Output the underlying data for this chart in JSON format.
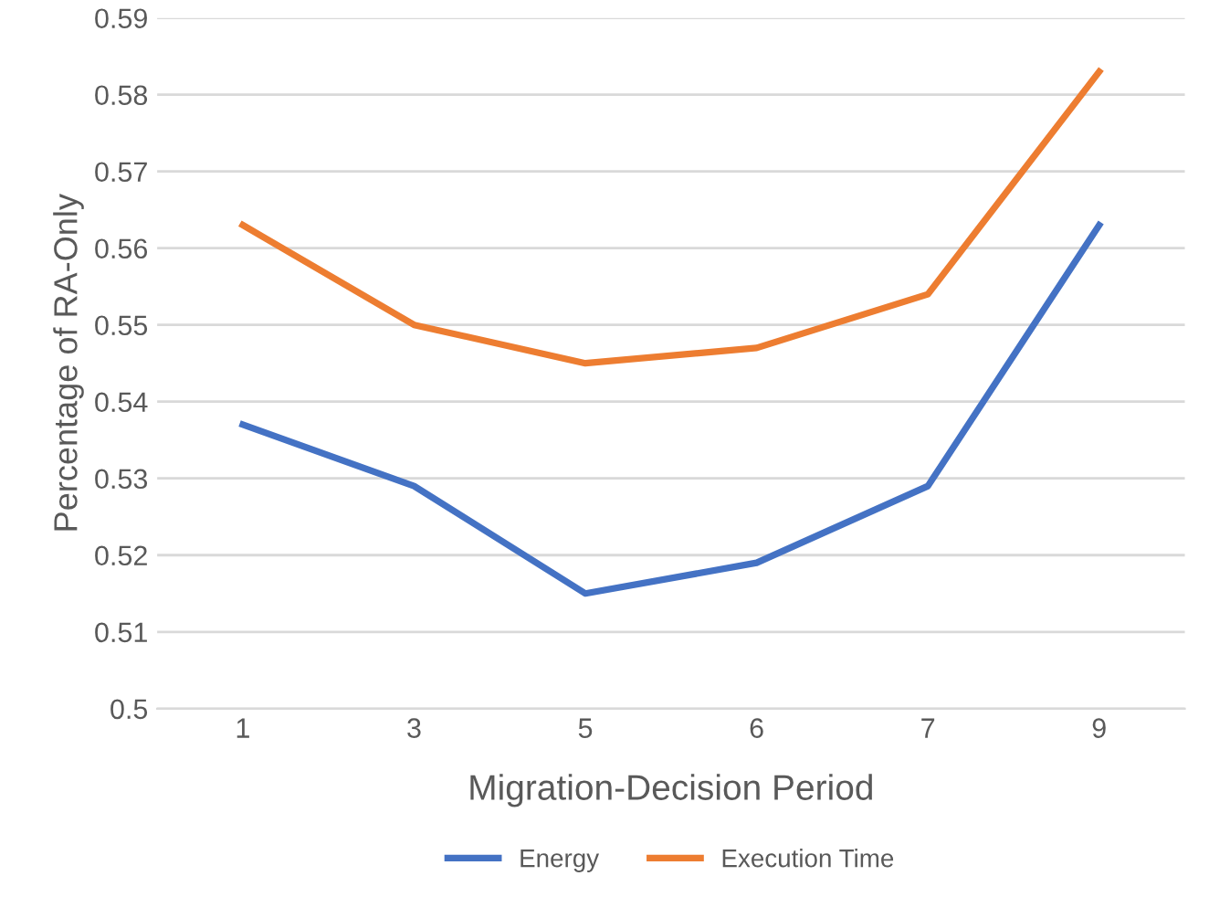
{
  "chart_data": {
    "type": "line",
    "xlabel": "Migration-Decision Period",
    "ylabel": "Percentage of RA-Only",
    "categories": [
      "1",
      "3",
      "5",
      "6",
      "7",
      "9"
    ],
    "series": [
      {
        "name": "Energy",
        "color": "#4472c4",
        "values": [
          0.537,
          0.529,
          0.515,
          0.519,
          0.529,
          0.563
        ]
      },
      {
        "name": "Execution Time",
        "color": "#ed7d31",
        "values": [
          0.563,
          0.55,
          0.545,
          0.547,
          0.554,
          0.583
        ]
      }
    ],
    "ylim": [
      0.5,
      0.59
    ],
    "yticks": [
      0.5,
      0.51,
      0.52,
      0.53,
      0.54,
      0.55,
      0.56,
      0.57,
      0.58,
      0.59
    ],
    "grid": "y",
    "legend": "bottom",
    "marker": "none",
    "line_style": "solid"
  }
}
